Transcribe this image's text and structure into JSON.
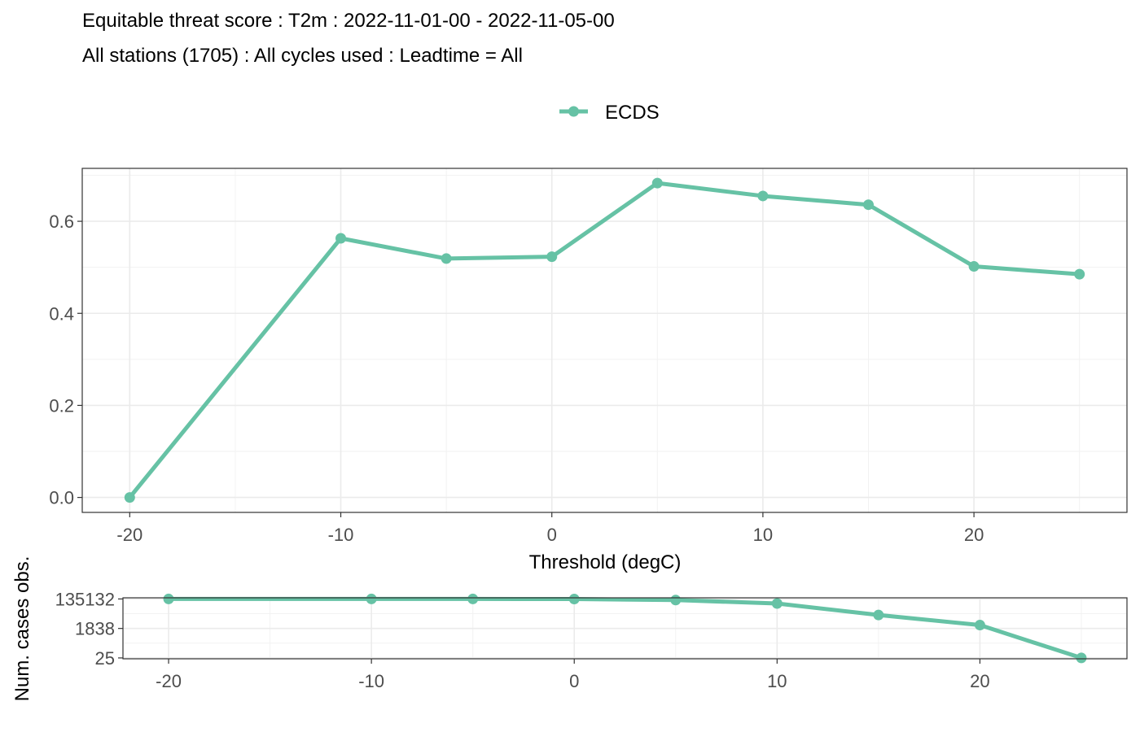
{
  "title": "Equitable threat score : T2m : 2022-11-01-00 - 2022-11-05-00",
  "subtitle": "All stations (1705) : All cycles used : Leadtime = All",
  "colors": {
    "series": "#66c2a5"
  },
  "chart_data": [
    {
      "type": "line",
      "xlabel": "Threshold (degC)",
      "ylabel": "",
      "xlim": [
        -22.25,
        27.25
      ],
      "ylim": [
        -0.0325,
        0.715
      ],
      "xticks": [
        -20,
        -10,
        0,
        10,
        20
      ],
      "yticks": [
        0.0,
        0.2,
        0.4,
        0.6
      ],
      "ytick_labels": [
        "0.0",
        "0.2",
        "0.4",
        "0.6"
      ],
      "grid": true,
      "legend_position": "top",
      "series": [
        {
          "name": "ECDS",
          "x": [
            -20,
            -10,
            -5,
            0,
            5,
            10,
            15,
            20,
            25
          ],
          "y": [
            0.0,
            0.563,
            0.519,
            0.523,
            0.683,
            0.655,
            0.636,
            0.502,
            0.485
          ]
        }
      ]
    },
    {
      "type": "line",
      "xlabel": "",
      "ylabel": "Num. cases obs.",
      "xlim": [
        -22.25,
        27.25
      ],
      "y_scale": "log",
      "ylim": [
        22,
        160000
      ],
      "xticks": [
        -20,
        -10,
        0,
        10,
        20
      ],
      "yticks": [
        25,
        1838,
        135132
      ],
      "ytick_labels": [
        "25",
        "1838",
        "135132"
      ],
      "grid": true,
      "series": [
        {
          "name": "ECDS",
          "x": [
            -20,
            -10,
            -5,
            0,
            5,
            10,
            15,
            20,
            25
          ],
          "y": [
            135132,
            135132,
            135000,
            133000,
            115000,
            70000,
            13000,
            3000,
            25
          ]
        }
      ]
    }
  ]
}
